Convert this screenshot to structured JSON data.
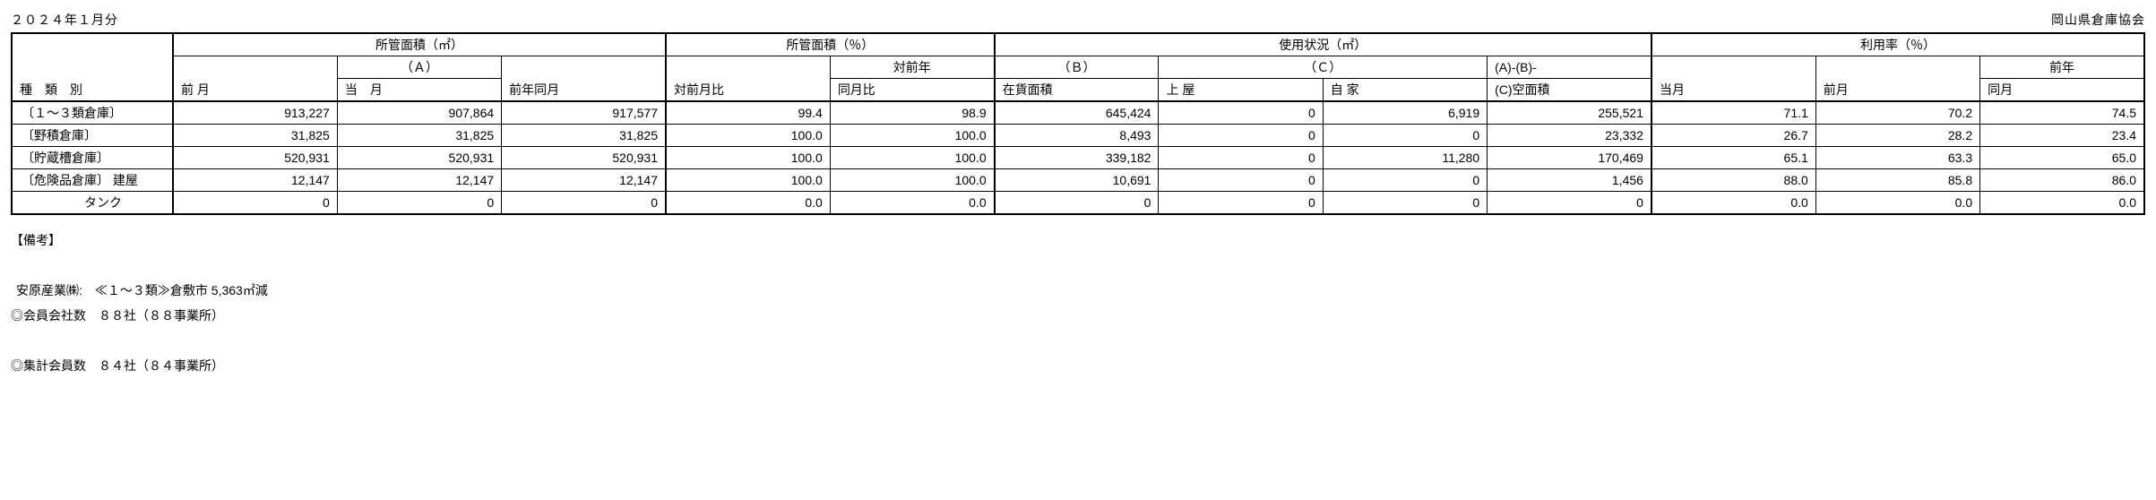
{
  "meta": {
    "period": "２０２４年１月分",
    "source": "岡山県倉庫協会"
  },
  "table": {
    "group_headers": {
      "types": "種　類　別",
      "area_m2": "所管面積（㎡）",
      "area_pct": "所管面積（％）",
      "usage_m2": "使用状況（㎡）",
      "util_pct": "利用率（％）"
    },
    "sub_headers": {
      "prev_month": "前 月",
      "a_top": "（Ａ）",
      "a_bottom": "当　月",
      "prev_year_month": "前年同月",
      "vs_prev_month": "対前月比",
      "vs_prev_year_top": "対前年",
      "vs_prev_year_bottom": "同月比",
      "b_top": "（Ｂ）",
      "b_bottom": "在貨面積",
      "c_top": "（Ｃ）",
      "c_sub_uwaya": "上 屋",
      "c_sub_jika": "自 家",
      "abc_top": "(A)-(B)-",
      "abc_bottom": "(C)空面積",
      "util_this": "当月",
      "util_prev": "前月",
      "util_prev_year_top": "前年",
      "util_prev_year_bottom": "同月"
    },
    "rows": [
      {
        "label": "〔１～３類倉庫〕",
        "prev_month": "913,227",
        "this_month": "907,864",
        "prev_year_month": "917,577",
        "vs_prev_month": "99.4",
        "vs_prev_year": "98.9",
        "stock_area": "645,424",
        "uwaya": "0",
        "jika": "6,919",
        "vacant": "255,521",
        "util_this": "71.1",
        "util_prev": "70.2",
        "util_prev_year": "74.5"
      },
      {
        "label": "〔野積倉庫〕",
        "prev_month": "31,825",
        "this_month": "31,825",
        "prev_year_month": "31,825",
        "vs_prev_month": "100.0",
        "vs_prev_year": "100.0",
        "stock_area": "8,493",
        "uwaya": "0",
        "jika": "0",
        "vacant": "23,332",
        "util_this": "26.7",
        "util_prev": "28.2",
        "util_prev_year": "23.4"
      },
      {
        "label": "〔貯蔵槽倉庫〕",
        "prev_month": "520,931",
        "this_month": "520,931",
        "prev_year_month": "520,931",
        "vs_prev_month": "100.0",
        "vs_prev_year": "100.0",
        "stock_area": "339,182",
        "uwaya": "0",
        "jika": "11,280",
        "vacant": "170,469",
        "util_this": "65.1",
        "util_prev": "63.3",
        "util_prev_year": "65.0"
      },
      {
        "label": "〔危険品倉庫〕 建屋",
        "prev_month": "12,147",
        "this_month": "12,147",
        "prev_year_month": "12,147",
        "vs_prev_month": "100.0",
        "vs_prev_year": "100.0",
        "stock_area": "10,691",
        "uwaya": "0",
        "jika": "0",
        "vacant": "1,456",
        "util_this": "88.0",
        "util_prev": "85.8",
        "util_prev_year": "86.0"
      },
      {
        "label": "　　　　　タンク",
        "prev_month": "0",
        "this_month": "0",
        "prev_year_month": "0",
        "vs_prev_month": "0.0",
        "vs_prev_year": "0.0",
        "stock_area": "0",
        "uwaya": "0",
        "jika": "0",
        "vacant": "0",
        "util_this": "0.0",
        "util_prev": "0.0",
        "util_prev_year": "0.0"
      }
    ]
  },
  "notes": {
    "heading": "【備考】",
    "line1": "安原産業㈱:　≪１～３類≫倉敷市 5,363㎡減",
    "line2": "◎会員会社数　８８社（８８事業所）",
    "line3": "◎集計会員数　８４社（８４事業所）"
  }
}
